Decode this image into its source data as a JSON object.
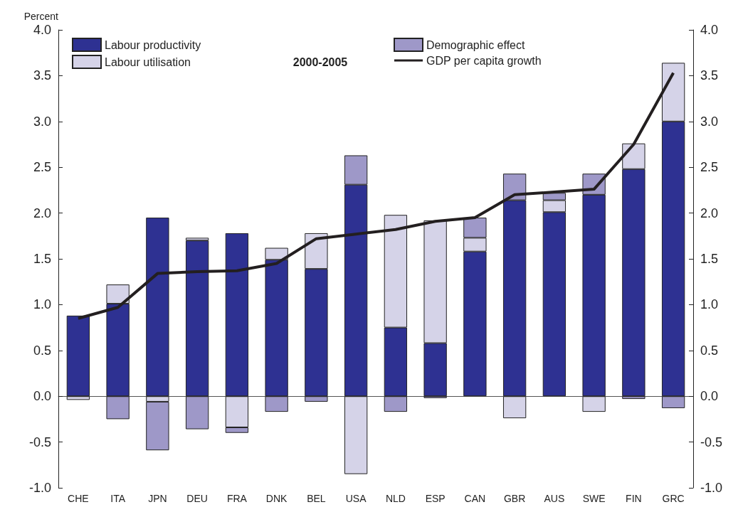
{
  "chart_data": {
    "type": "bar",
    "title": "2000-2005",
    "ylabel": "Percent",
    "stacked": true,
    "legend": "top",
    "categories": [
      "CHE",
      "ITA",
      "JPN",
      "DEU",
      "FRA",
      "DNK",
      "BEL",
      "USA",
      "NLD",
      "ESP",
      "CAN",
      "GBR",
      "AUS",
      "SWE",
      "FIN",
      "GRC"
    ],
    "series": [
      {
        "name": "Labour productivity",
        "color": "#2e3192",
        "values": [
          0.88,
          1.01,
          1.95,
          1.7,
          1.78,
          1.49,
          1.39,
          2.31,
          0.75,
          0.58,
          1.58,
          2.14,
          2.01,
          2.2,
          2.48,
          3.0
        ]
      },
      {
        "name": "Labour utilisation",
        "color": "#d5d3e8",
        "values": [
          -0.04,
          0.21,
          -0.06,
          0.03,
          -0.34,
          0.13,
          0.39,
          -0.85,
          1.23,
          1.34,
          0.15,
          -0.24,
          0.13,
          -0.17,
          0.28,
          0.64
        ]
      },
      {
        "name": "Demographic effect",
        "color": "#9e98c8",
        "values": [
          null,
          -0.25,
          -0.53,
          -0.36,
          -0.06,
          -0.17,
          -0.06,
          0.32,
          -0.17,
          -0.02,
          0.22,
          0.29,
          0.08,
          0.23,
          -0.03,
          -0.13
        ]
      },
      {
        "name": "GDP per capita growth",
        "type": "line",
        "color": "#231f20",
        "values": [
          0.85,
          0.97,
          1.34,
          1.36,
          1.37,
          1.45,
          1.72,
          1.77,
          1.82,
          1.91,
          1.95,
          2.2,
          2.23,
          2.26,
          2.75,
          3.53
        ]
      }
    ],
    "ylim": [
      -1,
      4
    ],
    "yticks": [
      {
        "value": -1,
        "label": "-1.0"
      },
      {
        "value": -0.5,
        "label": "-0.5"
      },
      {
        "value": 0,
        "label": "0.0"
      },
      {
        "value": 0.5,
        "label": "0.5"
      },
      {
        "value": 1,
        "label": "1.0"
      },
      {
        "value": 1.5,
        "label": "1.5"
      },
      {
        "value": 2,
        "label": "2.0"
      },
      {
        "value": 2.5,
        "label": "2.5"
      },
      {
        "value": 3,
        "label": "3.0"
      },
      {
        "value": 3.5,
        "label": "3.5"
      },
      {
        "value": 4,
        "label": "4.0"
      }
    ],
    "y2lim": [
      -1,
      4
    ],
    "y2ticks": [
      {
        "value": -1,
        "label": "-1.0"
      },
      {
        "value": -0.5,
        "label": "-0.5"
      },
      {
        "value": 0,
        "label": "0.0"
      },
      {
        "value": 0.5,
        "label": "0.5"
      },
      {
        "value": 1,
        "label": "1.0"
      },
      {
        "value": 1.5,
        "label": "1.5"
      },
      {
        "value": 2,
        "label": "2.0"
      },
      {
        "value": 2.5,
        "label": "2.5"
      },
      {
        "value": 3,
        "label": "3.0"
      },
      {
        "value": 3.5,
        "label": "3.5"
      },
      {
        "value": 4,
        "label": "4.0"
      }
    ]
  }
}
